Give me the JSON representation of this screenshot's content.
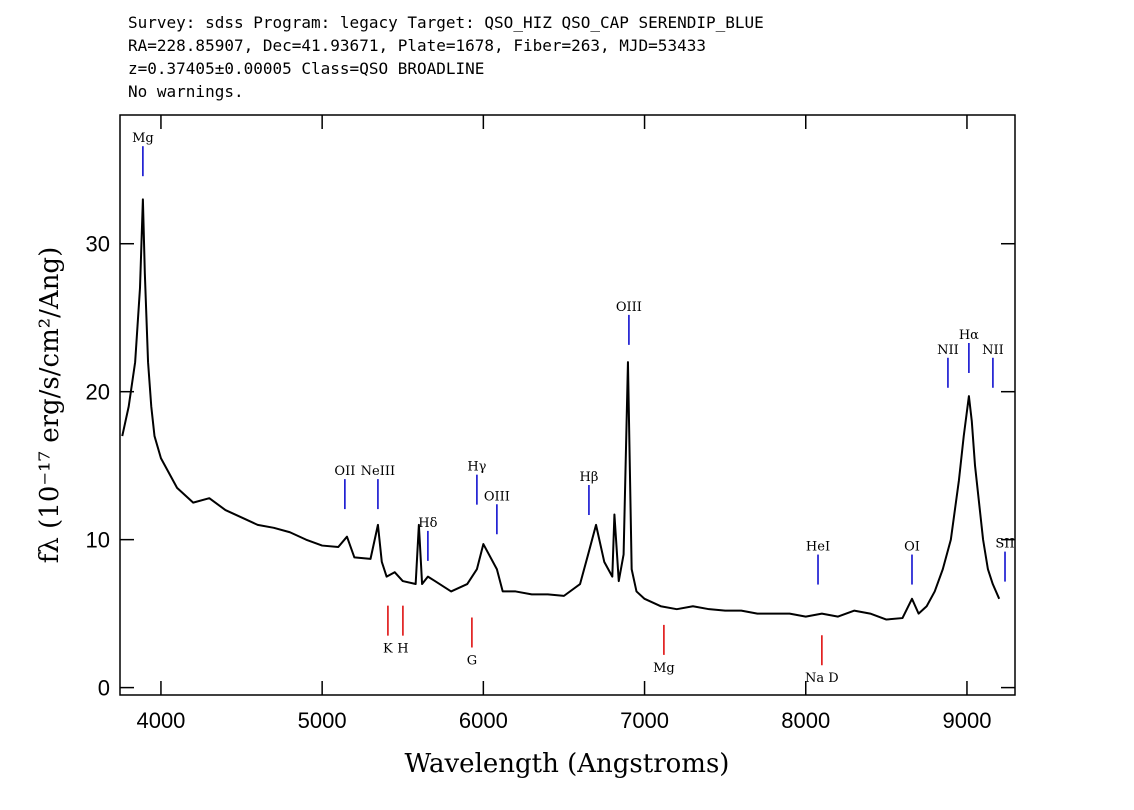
{
  "chart_data": {
    "type": "line",
    "title": [
      "Survey: sdss Program: legacy Target: QSO_HIZ QSO_CAP SERENDIP_BLUE",
      "RA=228.85907, Dec=41.93671, Plate=1678, Fiber=263, MJD=53433",
      "z=0.37405±0.00005 Class=QSO BROADLINE",
      "No warnings."
    ],
    "x_label": "Wavelength (Angstroms)",
    "y_label": "fλ (10⁻¹⁷ erg/s/cm²/Ang)",
    "color": "#000000",
    "x": [
      3760,
      3800,
      3840,
      3870,
      3888,
      3900,
      3920,
      3940,
      3960,
      4000,
      4100,
      4200,
      4300,
      4400,
      4500,
      4600,
      4700,
      4800,
      4900,
      5000,
      5100,
      5154,
      5200,
      5300,
      5346,
      5370,
      5400,
      5450,
      5500,
      5580,
      5600,
      5620,
      5656,
      5700,
      5800,
      5900,
      5960,
      6000,
      6084,
      6120,
      6200,
      6300,
      6400,
      6500,
      6600,
      6650,
      6699,
      6750,
      6800,
      6813,
      6840,
      6870,
      6897,
      6920,
      6950,
      7000,
      7100,
      7200,
      7300,
      7400,
      7500,
      7600,
      7700,
      7800,
      7900,
      8000,
      8100,
      8200,
      8300,
      8400,
      8500,
      8600,
      8659,
      8700,
      8750,
      8800,
      8850,
      8900,
      8950,
      8980,
      9012,
      9030,
      9050,
      9080,
      9100,
      9130,
      9160,
      9200
    ],
    "values": [
      17,
      19,
      22,
      27,
      33,
      28,
      22,
      19,
      17,
      15.5,
      13.5,
      12.5,
      12.8,
      12,
      11.5,
      11,
      10.8,
      10.5,
      10,
      9.6,
      9.5,
      10.2,
      8.8,
      8.7,
      11,
      8.5,
      7.5,
      7.8,
      7.2,
      7,
      11,
      7,
      7.5,
      7.2,
      6.5,
      7,
      8,
      9.7,
      8,
      6.5,
      6.5,
      6.3,
      6.3,
      6.2,
      7,
      9,
      11,
      8.5,
      7.5,
      11.7,
      7.2,
      9,
      22,
      8,
      6.5,
      6,
      5.5,
      5.3,
      5.5,
      5.3,
      5.2,
      5.2,
      5,
      5,
      5,
      4.8,
      5,
      4.8,
      5.2,
      5,
      4.6,
      4.7,
      6,
      5,
      5.5,
      6.5,
      8,
      10,
      14,
      17,
      19.7,
      18,
      15,
      12,
      10,
      8,
      7,
      6
    ],
    "xlim": [
      3746,
      9298
    ],
    "ylim": [
      -0.5,
      38.7
    ],
    "xticks": [
      4000,
      5000,
      6000,
      7000,
      8000,
      9000
    ],
    "yticks": [
      0,
      10,
      20,
      30
    ],
    "annotations": [
      {
        "text": "Mg",
        "x": 3888,
        "y": 37.2,
        "color": "#0000cc"
      },
      {
        "text": "OII",
        "x": 5141,
        "y": 14.7,
        "color": "#0000cc"
      },
      {
        "text": "NeIII",
        "x": 5346,
        "y": 14.7,
        "color": "#0000cc"
      },
      {
        "text": "Hδ",
        "x": 5656,
        "y": 11.2,
        "color": "#0000cc"
      },
      {
        "text": "Hγ",
        "x": 5960,
        "y": 15.0,
        "color": "#0000cc"
      },
      {
        "text": "OIII",
        "x": 6084,
        "y": 13.0,
        "color": "#0000cc"
      },
      {
        "text": "Hβ",
        "x": 6655,
        "y": 14.3,
        "color": "#0000cc"
      },
      {
        "text": "OIII",
        "x": 6903,
        "y": 25.8,
        "color": "#0000cc"
      },
      {
        "text": "NII",
        "x": 8882,
        "y": 22.9,
        "color": "#0000cc"
      },
      {
        "text": "Hα",
        "x": 9012,
        "y": 23.9,
        "color": "#0000cc"
      },
      {
        "text": "NII",
        "x": 9161,
        "y": 22.9,
        "color": "#0000cc"
      },
      {
        "text": "HeI",
        "x": 8076,
        "y": 9.6,
        "color": "#0000cc"
      },
      {
        "text": "OI",
        "x": 8659,
        "y": 9.6,
        "color": "#0000cc"
      },
      {
        "text": "SII",
        "x": 9236,
        "y": 9.8,
        "color": "#0000cc"
      },
      {
        "text": "K",
        "x": 5408,
        "y": 2.7,
        "color": "#dd0000"
      },
      {
        "text": "H",
        "x": 5501,
        "y": 2.7,
        "color": "#dd0000"
      },
      {
        "text": "G",
        "x": 5929,
        "y": 1.9,
        "color": "#dd0000"
      },
      {
        "text": "Mg",
        "x": 7120,
        "y": 1.4,
        "color": "#dd0000"
      },
      {
        "text": "Na D",
        "x": 8100,
        "y": 0.7,
        "color": "#dd0000"
      }
    ]
  }
}
